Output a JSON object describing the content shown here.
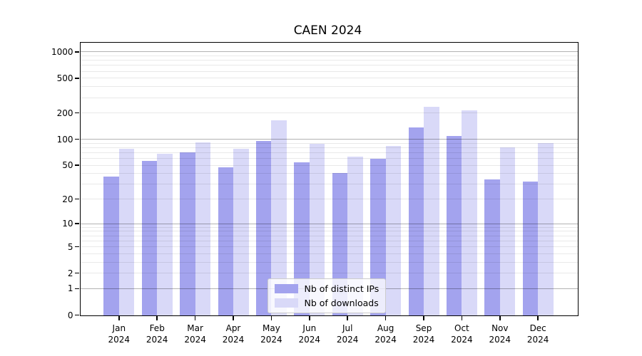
{
  "title": "CAEN 2024",
  "chart_data": {
    "type": "bar",
    "title": "CAEN 2024",
    "categories": [
      "Jan",
      "Feb",
      "Mar",
      "Apr",
      "May",
      "Jun",
      "Jul",
      "Aug",
      "Sep",
      "Oct",
      "Nov",
      "Dec"
    ],
    "xtick_year": "2024",
    "series": [
      {
        "name": "Nb of distinct IPs",
        "color": "#a3a3ee",
        "values": [
          37,
          56,
          70,
          47,
          95,
          54,
          41,
          60,
          137,
          109,
          34,
          32
        ]
      },
      {
        "name": "Nb of downloads",
        "color": "#d9d9f8",
        "values": [
          77,
          68,
          92,
          77,
          166,
          89,
          63,
          83,
          234,
          214,
          81,
          90
        ]
      }
    ],
    "yscale": "log1p",
    "ylim": [
      0,
      1000
    ],
    "ytick_labels": [
      "1000",
      "500",
      "200",
      "100",
      "50",
      "20",
      "10",
      "5",
      "2",
      "1",
      "0"
    ],
    "ytick_values": [
      1000,
      500,
      200,
      100,
      50,
      20,
      10,
      5,
      2,
      1,
      0
    ],
    "grid": "on",
    "grid_major_values": [
      1,
      10,
      100,
      1000
    ],
    "legend_position": "lower center",
    "colors": {
      "major_grid": "rgba(0,0,0,0.30)",
      "minor_grid": "rgba(0,0,0,0.085)"
    }
  }
}
